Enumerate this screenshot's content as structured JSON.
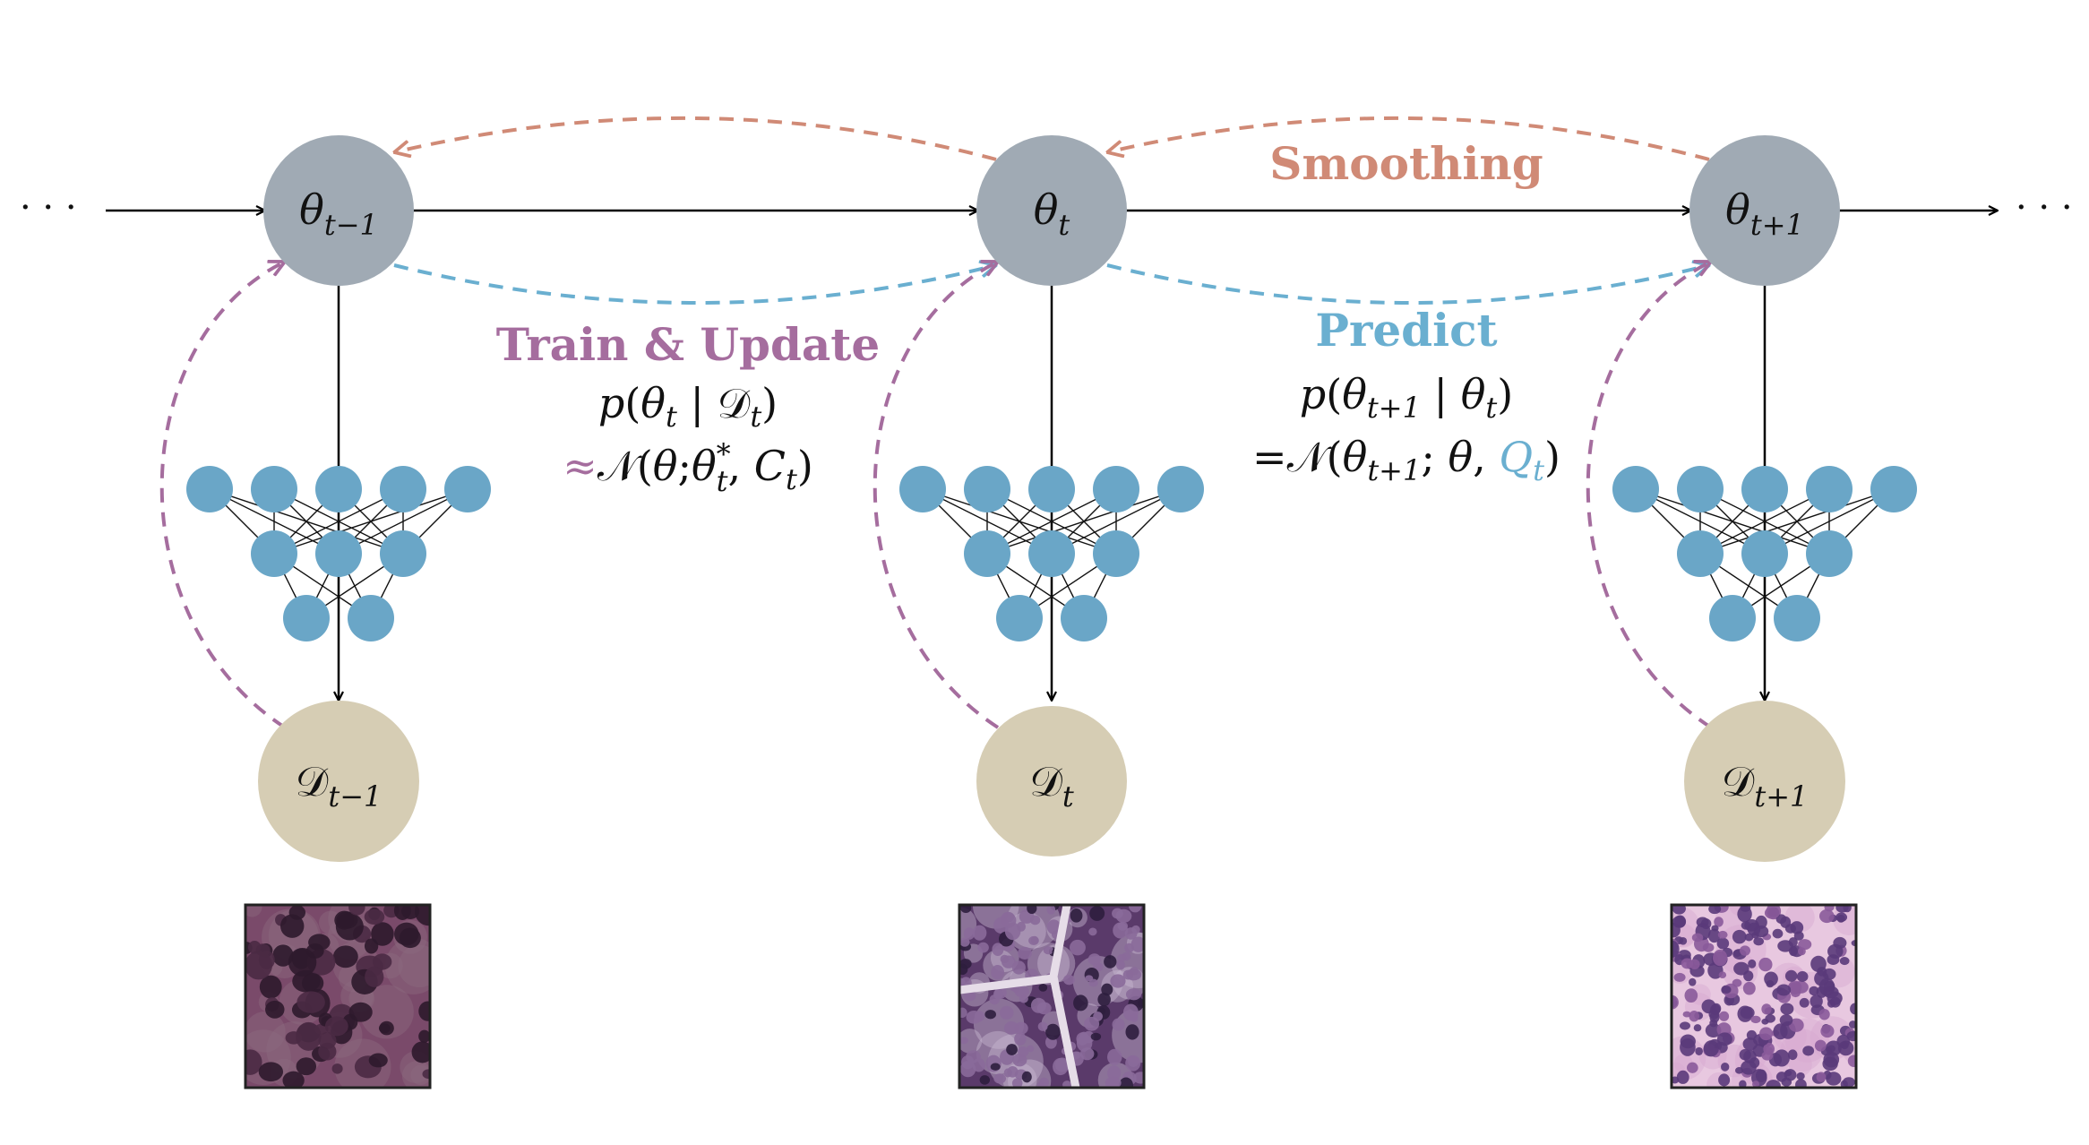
{
  "colors": {
    "theta_node": "#a0aab4",
    "data_node": "#d6cdb4",
    "nn_node": "#6aa6c7",
    "smoothing": "#d08a76",
    "predict": "#6aafd0",
    "train_update": "#a56d9e",
    "q_highlight": "#6aafd0",
    "line": "#000000",
    "text": "#111111"
  },
  "ellipsis": "· · ·",
  "theta_nodes": [
    {
      "base": "θ",
      "sub": "t−1"
    },
    {
      "base": "θ",
      "sub": "t"
    },
    {
      "base": "θ",
      "sub": "t+1"
    }
  ],
  "data_nodes": [
    {
      "base": "𝒟",
      "sub": "t−1"
    },
    {
      "base": "𝒟",
      "sub": "t"
    },
    {
      "base": "𝒟",
      "sub": "t+1"
    }
  ],
  "labels": {
    "smoothing": "Smoothing",
    "train_update": "Train & Update",
    "predict": "Predict"
  },
  "train_formula": {
    "line1": {
      "p": "p",
      "open": "(",
      "theta": "θ",
      "theta_sub": "t",
      "bar": " | ",
      "D": "𝒟",
      "D_sub": "t",
      "close": ")"
    },
    "line2": {
      "approx": "≈",
      "N": "𝒩",
      "open": "(",
      "theta": "θ",
      "semi": ";",
      "theta_star": "θ",
      "star_sup": "*",
      "star_sub": "t",
      "comma": ", ",
      "C": "C",
      "C_sub": "t",
      "close": ")"
    }
  },
  "predict_formula": {
    "line1": {
      "p": "p",
      "open": "(",
      "theta1": "θ",
      "theta1_sub": "t+1",
      "bar": " | ",
      "theta2": "θ",
      "theta2_sub": "t",
      "close": ")"
    },
    "line2": {
      "eq": "=",
      "N": "𝒩",
      "open": "(",
      "theta": "θ",
      "theta_sub": "t+1",
      "semi": "; ",
      "theta_b": "θ",
      "comma": ", ",
      "Q": "Q",
      "Q_sub": "t",
      "close": ")"
    }
  },
  "image_tiles": [
    {
      "name": "histology-tile-t-minus-1",
      "palette": [
        "#7a4a6a",
        "#4a2a44",
        "#8c6a7e",
        "#2e1a2c"
      ]
    },
    {
      "name": "histology-tile-t",
      "palette": [
        "#5a3a6a",
        "#2e1e3e",
        "#c8b8d0",
        "#8a6a9a"
      ]
    },
    {
      "name": "histology-tile-t-plus-1",
      "palette": [
        "#e8c8e0",
        "#8a5a9a",
        "#d8a8d0",
        "#5a3a7a"
      ]
    }
  ]
}
